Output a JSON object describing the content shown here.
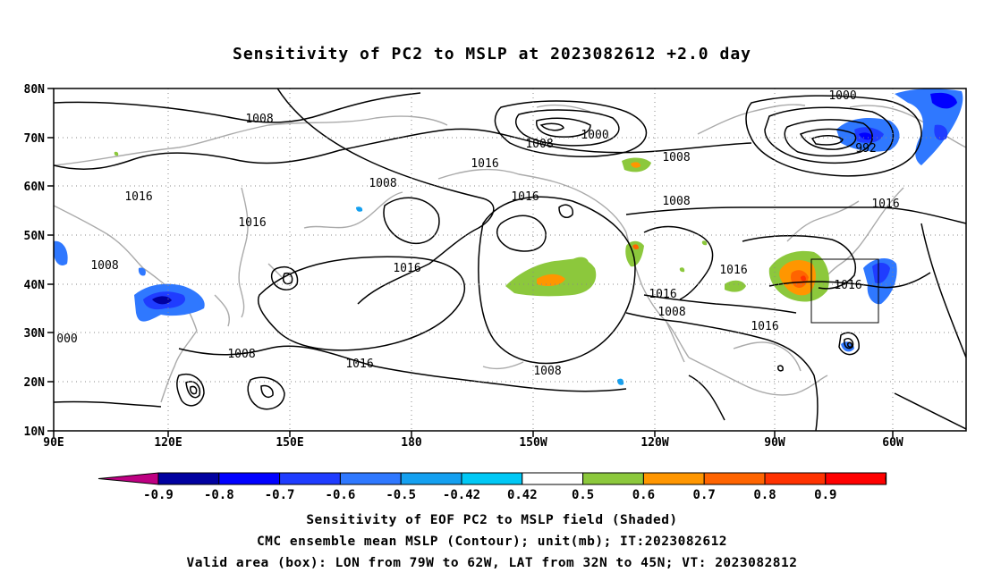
{
  "title": "Sensitivity of PC2 to MSLP at 2023082612 +2.0 day",
  "lat_labels": [
    "80N",
    "70N",
    "60N",
    "50N",
    "40N",
    "30N",
    "20N",
    "10N"
  ],
  "lon_labels": [
    "90E",
    "120E",
    "150E",
    "180",
    "150W",
    "120W",
    "90W",
    "60W"
  ],
  "colorbar": {
    "labels": [
      "-0.9",
      "-0.8",
      "-0.7",
      "-0.6",
      "-0.5",
      "-0.42",
      "0.42",
      "0.5",
      "0.6",
      "0.7",
      "0.8",
      "0.9"
    ],
    "colors": [
      "#be0082",
      "#0000a0",
      "#0000ff",
      "#1f3cff",
      "#2f78ff",
      "#14a0f0",
      "#00c8f5",
      "#ffffff",
      "#8cc83c",
      "#ff9600",
      "#ff6400",
      "#ff3200",
      "#ff0000",
      "#f5a0c8"
    ]
  },
  "contour_labels": [
    {
      "text": "1008"
    },
    {
      "text": "1000"
    },
    {
      "text": "1008"
    },
    {
      "text": "1008"
    },
    {
      "text": "1000"
    },
    {
      "text": "992"
    },
    {
      "text": "1016"
    },
    {
      "text": "1016"
    },
    {
      "text": "1016"
    },
    {
      "text": "1016"
    },
    {
      "text": "1008"
    },
    {
      "text": "1016"
    },
    {
      "text": "1008"
    },
    {
      "text": "1016"
    },
    {
      "text": "1008"
    },
    {
      "text": "1016"
    },
    {
      "text": "1016"
    },
    {
      "text": "1016"
    },
    {
      "text": "1008"
    },
    {
      "text": "000"
    },
    {
      "text": "1008"
    },
    {
      "text": "1016"
    },
    {
      "text": "1016"
    },
    {
      "text": "1008"
    }
  ],
  "captions": {
    "line1": "Sensitivity of EOF PC2 to MSLP field (Shaded)",
    "line2": "CMC ensemble mean MSLP (Contour); unit(mb); IT:2023082612",
    "line3": "Valid area (box): LON from 79W to 62W, LAT from 32N to 45N; VT: 2023082812"
  },
  "valid_box": {
    "lon_w": -79,
    "lon_e": -62,
    "lat_s": 32,
    "lat_n": 45
  }
}
